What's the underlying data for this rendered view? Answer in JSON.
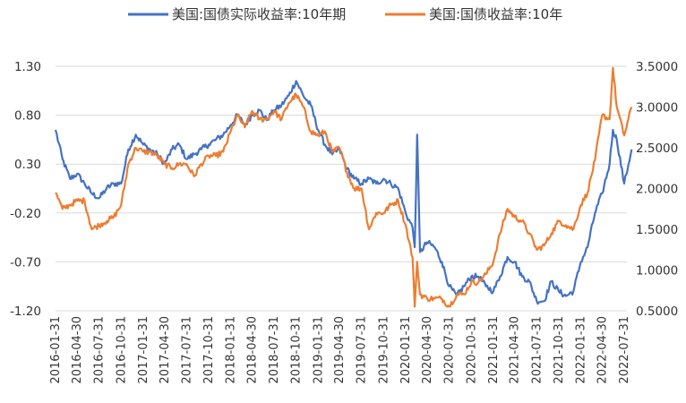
{
  "chart_data": {
    "type": "line",
    "title": "",
    "xlabel": "",
    "ylabel": "",
    "x_ticks": [
      "2016-01-31",
      "2016-04-30",
      "2016-07-31",
      "2016-10-31",
      "2017-01-31",
      "2017-04-30",
      "2017-07-31",
      "2017-10-31",
      "2018-01-31",
      "2018-04-30",
      "2018-07-31",
      "2018-10-31",
      "2019-01-31",
      "2019-04-30",
      "2019-07-31",
      "2019-10-31",
      "2020-01-31",
      "2020-04-30",
      "2020-07-31",
      "2020-10-31",
      "2021-01-31",
      "2021-04-30",
      "2021-07-31",
      "2021-10-31",
      "2022-01-31",
      "2022-04-30",
      "2022-07-31"
    ],
    "y_left": {
      "ylim": [
        -1.2,
        1.3
      ],
      "ticks": [
        "1.30",
        "0.80",
        "0.30",
        "-0.20",
        "-0.70",
        "-1.20"
      ]
    },
    "y_right": {
      "ylim": [
        0.5,
        3.5
      ],
      "ticks": [
        "3.5000",
        "3.0000",
        "2.5000",
        "2.0000",
        "1.5000",
        "1.0000",
        "0.5000"
      ]
    },
    "legend_position": "top",
    "grid": "horizontal",
    "series": [
      {
        "name": "美国:国债实际收益率:10年期",
        "axis": "left",
        "color": "#4472C4",
        "x": [
          "2016-01-31",
          "2016-02-29",
          "2016-03-31",
          "2016-04-30",
          "2016-05-31",
          "2016-06-30",
          "2016-07-31",
          "2016-08-31",
          "2016-09-30",
          "2016-10-31",
          "2016-11-30",
          "2016-12-31",
          "2017-01-31",
          "2017-02-28",
          "2017-03-31",
          "2017-04-30",
          "2017-05-31",
          "2017-06-30",
          "2017-07-31",
          "2017-08-31",
          "2017-09-30",
          "2017-10-31",
          "2017-11-30",
          "2017-12-31",
          "2018-01-31",
          "2018-02-28",
          "2018-03-31",
          "2018-04-30",
          "2018-05-31",
          "2018-06-30",
          "2018-07-31",
          "2018-08-31",
          "2018-09-30",
          "2018-10-31",
          "2018-11-30",
          "2018-12-31",
          "2019-01-31",
          "2019-02-28",
          "2019-03-31",
          "2019-04-30",
          "2019-05-31",
          "2019-06-30",
          "2019-07-31",
          "2019-08-31",
          "2019-09-30",
          "2019-10-31",
          "2019-11-30",
          "2019-12-31",
          "2020-01-31",
          "2020-02-29",
          "2020-03-09",
          "2020-03-19",
          "2020-03-31",
          "2020-04-30",
          "2020-05-31",
          "2020-06-30",
          "2020-07-31",
          "2020-08-31",
          "2020-09-30",
          "2020-10-31",
          "2020-11-30",
          "2020-12-31",
          "2021-01-31",
          "2021-02-28",
          "2021-03-31",
          "2021-04-30",
          "2021-05-31",
          "2021-06-30",
          "2021-07-31",
          "2021-08-31",
          "2021-09-30",
          "2021-10-31",
          "2021-11-30",
          "2021-12-31",
          "2022-01-31",
          "2022-02-28",
          "2022-03-31",
          "2022-04-30",
          "2022-05-31",
          "2022-06-14",
          "2022-06-30",
          "2022-07-31",
          "2022-08-31"
        ],
        "values": [
          0.65,
          0.35,
          0.15,
          0.2,
          0.1,
          0.0,
          -0.05,
          0.05,
          0.1,
          0.1,
          0.45,
          0.6,
          0.5,
          0.45,
          0.4,
          0.3,
          0.45,
          0.5,
          0.35,
          0.4,
          0.45,
          0.5,
          0.55,
          0.6,
          0.7,
          0.8,
          0.7,
          0.8,
          0.85,
          0.75,
          0.85,
          0.9,
          1.0,
          1.15,
          1.0,
          0.9,
          0.65,
          0.5,
          0.4,
          0.45,
          0.25,
          0.15,
          0.1,
          0.15,
          0.1,
          0.15,
          0.1,
          0.05,
          -0.2,
          -0.35,
          -0.55,
          0.6,
          -0.6,
          -0.5,
          -0.55,
          -0.7,
          -0.95,
          -1.05,
          -0.95,
          -0.85,
          -0.85,
          -0.95,
          -1.0,
          -0.85,
          -0.65,
          -0.7,
          -0.85,
          -0.9,
          -1.1,
          -1.1,
          -0.9,
          -1.0,
          -1.05,
          -1.0,
          -0.7,
          -0.55,
          -0.2,
          0.0,
          0.3,
          0.65,
          0.55,
          0.1,
          0.45
        ]
      },
      {
        "name": "美国:国债收益率:10年",
        "axis": "right",
        "color": "#ED7D31",
        "x": [
          "2016-01-31",
          "2016-02-29",
          "2016-03-31",
          "2016-04-30",
          "2016-05-31",
          "2016-06-30",
          "2016-07-31",
          "2016-08-31",
          "2016-09-30",
          "2016-10-31",
          "2016-11-30",
          "2016-12-31",
          "2017-01-31",
          "2017-02-28",
          "2017-03-31",
          "2017-04-30",
          "2017-05-31",
          "2017-06-30",
          "2017-07-31",
          "2017-08-31",
          "2017-09-30",
          "2017-10-31",
          "2017-11-30",
          "2017-12-31",
          "2018-01-31",
          "2018-02-28",
          "2018-03-31",
          "2018-04-30",
          "2018-05-31",
          "2018-06-30",
          "2018-07-31",
          "2018-08-31",
          "2018-09-30",
          "2018-10-31",
          "2018-11-30",
          "2018-12-31",
          "2019-01-31",
          "2019-02-28",
          "2019-03-31",
          "2019-04-30",
          "2019-05-31",
          "2019-06-30",
          "2019-07-31",
          "2019-08-31",
          "2019-09-30",
          "2019-10-31",
          "2019-11-30",
          "2019-12-31",
          "2020-01-31",
          "2020-02-29",
          "2020-03-09",
          "2020-03-19",
          "2020-03-31",
          "2020-04-30",
          "2020-05-31",
          "2020-06-30",
          "2020-07-31",
          "2020-08-31",
          "2020-09-30",
          "2020-10-31",
          "2020-11-30",
          "2020-12-31",
          "2021-01-31",
          "2021-02-28",
          "2021-03-31",
          "2021-04-30",
          "2021-05-31",
          "2021-06-30",
          "2021-07-31",
          "2021-08-31",
          "2021-09-30",
          "2021-10-31",
          "2021-11-30",
          "2021-12-31",
          "2022-01-31",
          "2022-02-28",
          "2022-03-31",
          "2022-04-30",
          "2022-05-31",
          "2022-06-14",
          "2022-06-30",
          "2022-07-31",
          "2022-08-31"
        ],
        "values": [
          1.95,
          1.75,
          1.8,
          1.85,
          1.85,
          1.5,
          1.55,
          1.6,
          1.65,
          1.8,
          2.3,
          2.5,
          2.45,
          2.45,
          2.4,
          2.3,
          2.25,
          2.3,
          2.3,
          2.15,
          2.3,
          2.4,
          2.4,
          2.45,
          2.7,
          2.9,
          2.75,
          2.95,
          2.85,
          2.85,
          2.95,
          2.85,
          3.05,
          3.15,
          3.0,
          2.7,
          2.65,
          2.7,
          2.45,
          2.5,
          2.2,
          2.0,
          2.0,
          1.5,
          1.7,
          1.7,
          1.8,
          1.85,
          1.55,
          1.15,
          0.55,
          1.1,
          0.7,
          0.65,
          0.65,
          0.65,
          0.55,
          0.7,
          0.7,
          0.85,
          0.85,
          0.95,
          1.1,
          1.45,
          1.75,
          1.65,
          1.6,
          1.45,
          1.25,
          1.3,
          1.45,
          1.6,
          1.55,
          1.5,
          1.8,
          1.95,
          2.35,
          2.9,
          2.85,
          3.48,
          3.0,
          2.65,
          3.0
        ]
      }
    ]
  }
}
